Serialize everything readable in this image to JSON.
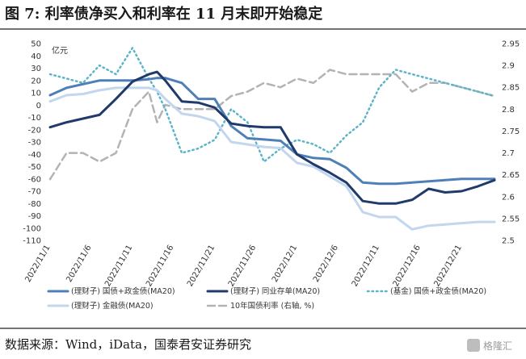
{
  "chart_data": {
    "type": "line",
    "title": "图 7: 利率债净买入和利率在 11 月末即开始稳定",
    "left_unit": "亿元",
    "left_ylim": [
      -110,
      50
    ],
    "right_ylim": [
      2.5,
      2.95
    ],
    "left_ticks": [
      "50",
      "40",
      "30",
      "20",
      "10",
      "0",
      "-10",
      "-20",
      "-30",
      "-40",
      "-50",
      "-60",
      "-70",
      "-80",
      "-90",
      "-100",
      "-110"
    ],
    "right_ticks": [
      "2.95",
      "2.9",
      "2.85",
      "2.8",
      "2.75",
      "2.7",
      "2.65",
      "2.6",
      "2.55",
      "2.5"
    ],
    "x_tick_labels": [
      "2022/11/1",
      "2022/11/6",
      "2022/11/11",
      "2022/11/16",
      "2022/11/21",
      "2022/11/26",
      "2022/12/1",
      "2022/12/6",
      "2022/12/11",
      "2022/12/16",
      "2022/12/21"
    ],
    "x": [
      "2022/11/1",
      "2022/11/3",
      "2022/11/5",
      "2022/11/7",
      "2022/11/9",
      "2022/11/11",
      "2022/11/13",
      "2022/11/14",
      "2022/11/15",
      "2022/11/17",
      "2022/11/19",
      "2022/11/21",
      "2022/11/23",
      "2022/11/25",
      "2022/11/27",
      "2022/11/29",
      "2022/12/1",
      "2022/12/3",
      "2022/12/5",
      "2022/12/7",
      "2022/12/9",
      "2022/12/11",
      "2022/12/13",
      "2022/12/15",
      "2022/12/17",
      "2022/12/19",
      "2022/12/21",
      "2022/12/23",
      "2022/12/25"
    ],
    "series": [
      {
        "name": "(理财子) 国债+政金债(MA20)",
        "axis": "left",
        "style": "solid",
        "color": "#4f7fb8",
        "width": 3,
        "values": [
          8,
          14,
          17,
          20,
          20,
          20,
          21,
          22,
          22,
          18,
          5,
          5,
          -17,
          -27,
          -28,
          -29,
          -40,
          -43,
          -44,
          -51,
          -63,
          -64,
          -64,
          -63,
          -62,
          -61,
          -60,
          -60,
          -60
        ]
      },
      {
        "name": "(理财子) 同业存单(MA20)",
        "axis": "left",
        "style": "solid",
        "color": "#1f3a6b",
        "width": 3,
        "values": [
          -18,
          -14,
          -11,
          -8,
          5,
          19,
          25,
          27,
          20,
          3,
          2,
          -2,
          -15,
          -17,
          -18,
          -18,
          -40,
          -48,
          -55,
          -63,
          -78,
          -80,
          -80,
          -77,
          -68,
          -71,
          -70,
          -66,
          -61
        ]
      },
      {
        "name": "(基金) 国债+政金债(MA20)",
        "axis": "right",
        "style": "dotted",
        "color": "#5cb4c8",
        "width": 2.5,
        "values": [
          2.88,
          2.87,
          2.86,
          2.9,
          2.88,
          2.94,
          2.87,
          2.84,
          2.8,
          2.7,
          2.71,
          2.73,
          2.8,
          2.77,
          2.68,
          2.71,
          2.73,
          2.72,
          2.7,
          2.74,
          2.77,
          2.85,
          2.89,
          2.88,
          2.87,
          2.86,
          2.85,
          2.84,
          2.83
        ]
      },
      {
        "name": "(理财子) 金融债(MA20)",
        "axis": "left",
        "style": "solid",
        "color": "#c2d6ee",
        "width": 3,
        "values": [
          3,
          8,
          9,
          12,
          14,
          14,
          14,
          12,
          5,
          -7,
          -9,
          -13,
          -30,
          -32,
          -34,
          -35,
          -47,
          -50,
          -58,
          -66,
          -87,
          -91,
          -91,
          -101,
          -98,
          -97,
          -96,
          -95,
          -95
        ]
      },
      {
        "name": "10年国债利率 (右轴, %)",
        "axis": "right",
        "style": "dashed",
        "color": "#b3b3b3",
        "width": 2.5,
        "values": [
          2.64,
          2.7,
          2.7,
          2.68,
          2.7,
          2.8,
          2.84,
          2.77,
          2.81,
          2.8,
          2.8,
          2.8,
          2.83,
          2.84,
          2.86,
          2.85,
          2.87,
          2.86,
          2.89,
          2.88,
          2.88,
          2.88,
          2.88,
          2.84,
          2.86,
          2.86,
          2.85,
          2.84,
          2.83
        ]
      }
    ]
  },
  "source": "数据来源：Wind，iData，国泰君安证券研究",
  "watermark": "格隆汇"
}
